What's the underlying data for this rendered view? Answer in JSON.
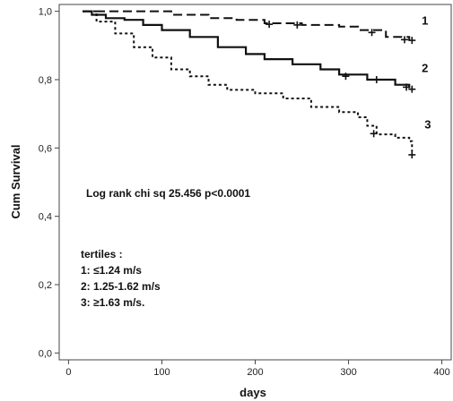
{
  "chart_data": {
    "type": "line",
    "title": "",
    "xlabel": "days",
    "ylabel": "Cum Survival",
    "xlim": [
      -10,
      410
    ],
    "ylim": [
      -0.02,
      1.02
    ],
    "grid": false,
    "x_ticks": [
      0,
      100,
      200,
      300,
      400
    ],
    "x_tick_labels": [
      "0",
      "100",
      "200",
      "300",
      "400"
    ],
    "y_ticks": [
      0.0,
      0.2,
      0.4,
      0.6,
      0.8,
      1.0
    ],
    "y_tick_labels": [
      "0,0",
      "0,2",
      "0,4",
      "0,6",
      "0,8",
      "1,0"
    ],
    "annotations": [
      "Log rank chi sq 25.456 p<0.0001",
      "tertiles :",
      "1: ≤1.24 m/s",
      "2: 1.25-1.62 m/s",
      "3:  ≥1.63 m/s."
    ],
    "series": [
      {
        "name": "1",
        "style": "dashed",
        "x": [
          15,
          70,
          110,
          150,
          180,
          210,
          250,
          290,
          310,
          340,
          365
        ],
        "y": [
          1.0,
          1.0,
          0.99,
          0.98,
          0.975,
          0.965,
          0.96,
          0.955,
          0.945,
          0.925,
          0.915
        ],
        "censored": [
          [
            215,
            0.962
          ],
          [
            245,
            0.96
          ],
          [
            325,
            0.938
          ],
          [
            360,
            0.917
          ],
          [
            368,
            0.915
          ]
        ]
      },
      {
        "name": "2",
        "style": "solid",
        "x": [
          15,
          25,
          40,
          60,
          80,
          100,
          130,
          160,
          190,
          210,
          240,
          270,
          290,
          320,
          350,
          365
        ],
        "y": [
          1.0,
          0.99,
          0.98,
          0.975,
          0.96,
          0.945,
          0.925,
          0.895,
          0.875,
          0.86,
          0.845,
          0.83,
          0.815,
          0.8,
          0.785,
          0.775
        ],
        "censored": [
          [
            297,
            0.81
          ],
          [
            330,
            0.8
          ],
          [
            362,
            0.778
          ],
          [
            368,
            0.772
          ]
        ]
      },
      {
        "name": "3",
        "style": "dotted",
        "x": [
          15,
          30,
          50,
          70,
          90,
          110,
          130,
          150,
          170,
          200,
          230,
          260,
          290,
          310,
          320,
          330,
          350,
          365,
          368
        ],
        "y": [
          1.0,
          0.97,
          0.935,
          0.895,
          0.865,
          0.83,
          0.81,
          0.785,
          0.77,
          0.76,
          0.745,
          0.72,
          0.705,
          0.69,
          0.665,
          0.64,
          0.63,
          0.62,
          0.59
        ],
        "censored": [
          [
            327,
            0.642
          ],
          [
            368,
            0.58
          ]
        ]
      }
    ]
  }
}
